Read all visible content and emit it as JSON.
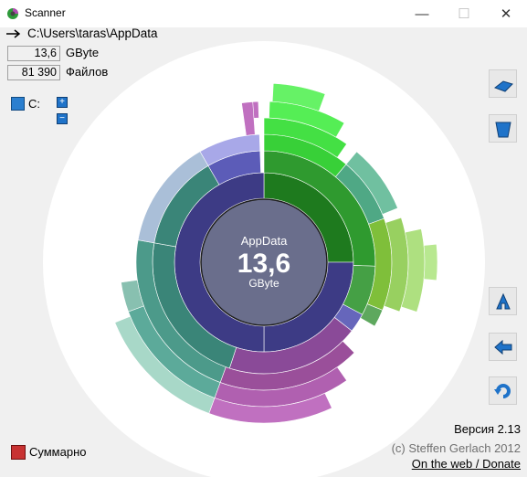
{
  "window": {
    "title": "Scanner",
    "minimize": "—",
    "maximize": "☐",
    "close": "✕"
  },
  "path": {
    "text": "C:\\Users\\taras\\AppData"
  },
  "stats": {
    "size_value": "13,6",
    "size_unit": "GByte",
    "files_value": "81 390",
    "files_unit": "Файлов"
  },
  "drive": {
    "label": "C:",
    "plus": "+",
    "minus": "−"
  },
  "center": {
    "name": "AppData",
    "size": "13,6",
    "unit": "GByte"
  },
  "footer": {
    "version": "Версия 2.13",
    "copyright": "(c) Steffen Gerlach 2012",
    "link": "On the web / Donate",
    "summary_label": "Суммарно"
  },
  "icons": {
    "app": "scanner-app-icon",
    "path": "arrow-right-icon",
    "drive": "drive-icon",
    "tools": [
      "eraser-icon",
      "delete-bin-icon",
      "up-folder-icon",
      "back-arrow-icon",
      "refresh-icon"
    ]
  },
  "colors": {
    "green": "#22dd22",
    "dark_green": "#1e7a1e",
    "navy": "#3d3b85",
    "purple": "#9a4f9a",
    "teal": "#4c9a8a",
    "lavender": "#8888dd",
    "center": "#6a6e8c"
  }
}
